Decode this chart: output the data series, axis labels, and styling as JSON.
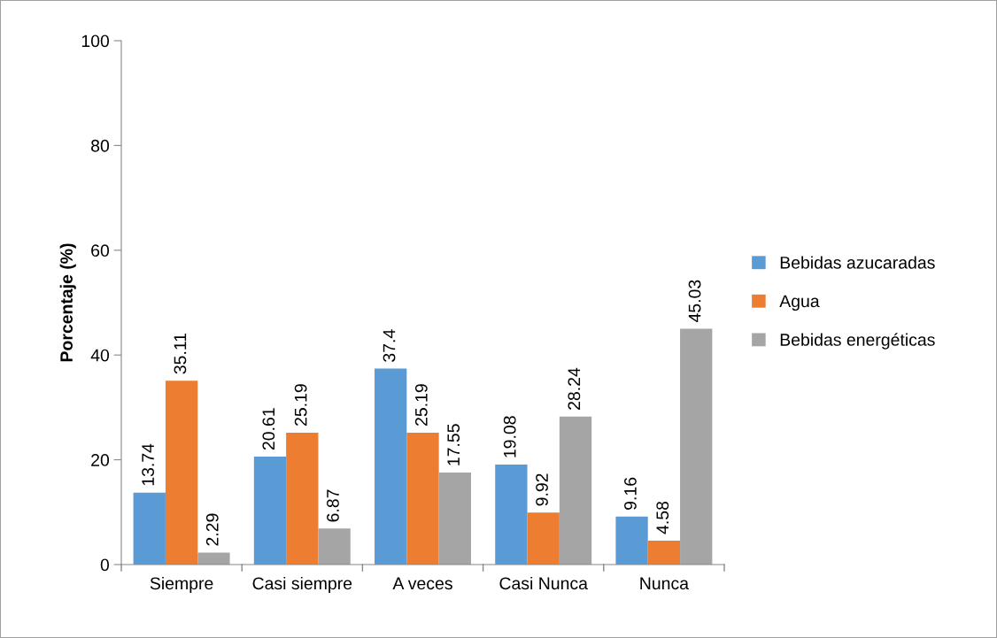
{
  "chart_data": {
    "type": "bar",
    "ylabel": "Porcentaje (%)",
    "categories": [
      "Siempre",
      "Casi siempre",
      "A veces",
      "Casi Nunca",
      "Nunca"
    ],
    "series": [
      {
        "name": "Bebidas azucaradas",
        "color": "#5b9bd5",
        "values": [
          13.74,
          20.61,
          37.4,
          19.08,
          9.16
        ]
      },
      {
        "name": "Agua",
        "color": "#ed7d31",
        "values": [
          35.11,
          25.19,
          25.19,
          9.92,
          4.58
        ]
      },
      {
        "name": "Bebidas energéticas",
        "color": "#a5a5a5",
        "values": [
          2.29,
          6.87,
          17.55,
          28.24,
          45.03
        ]
      }
    ],
    "ylim": [
      0,
      100
    ],
    "yticks": [
      0,
      20,
      40,
      60,
      80,
      100
    ],
    "data_labels": true,
    "grid": false,
    "legend": "right"
  }
}
